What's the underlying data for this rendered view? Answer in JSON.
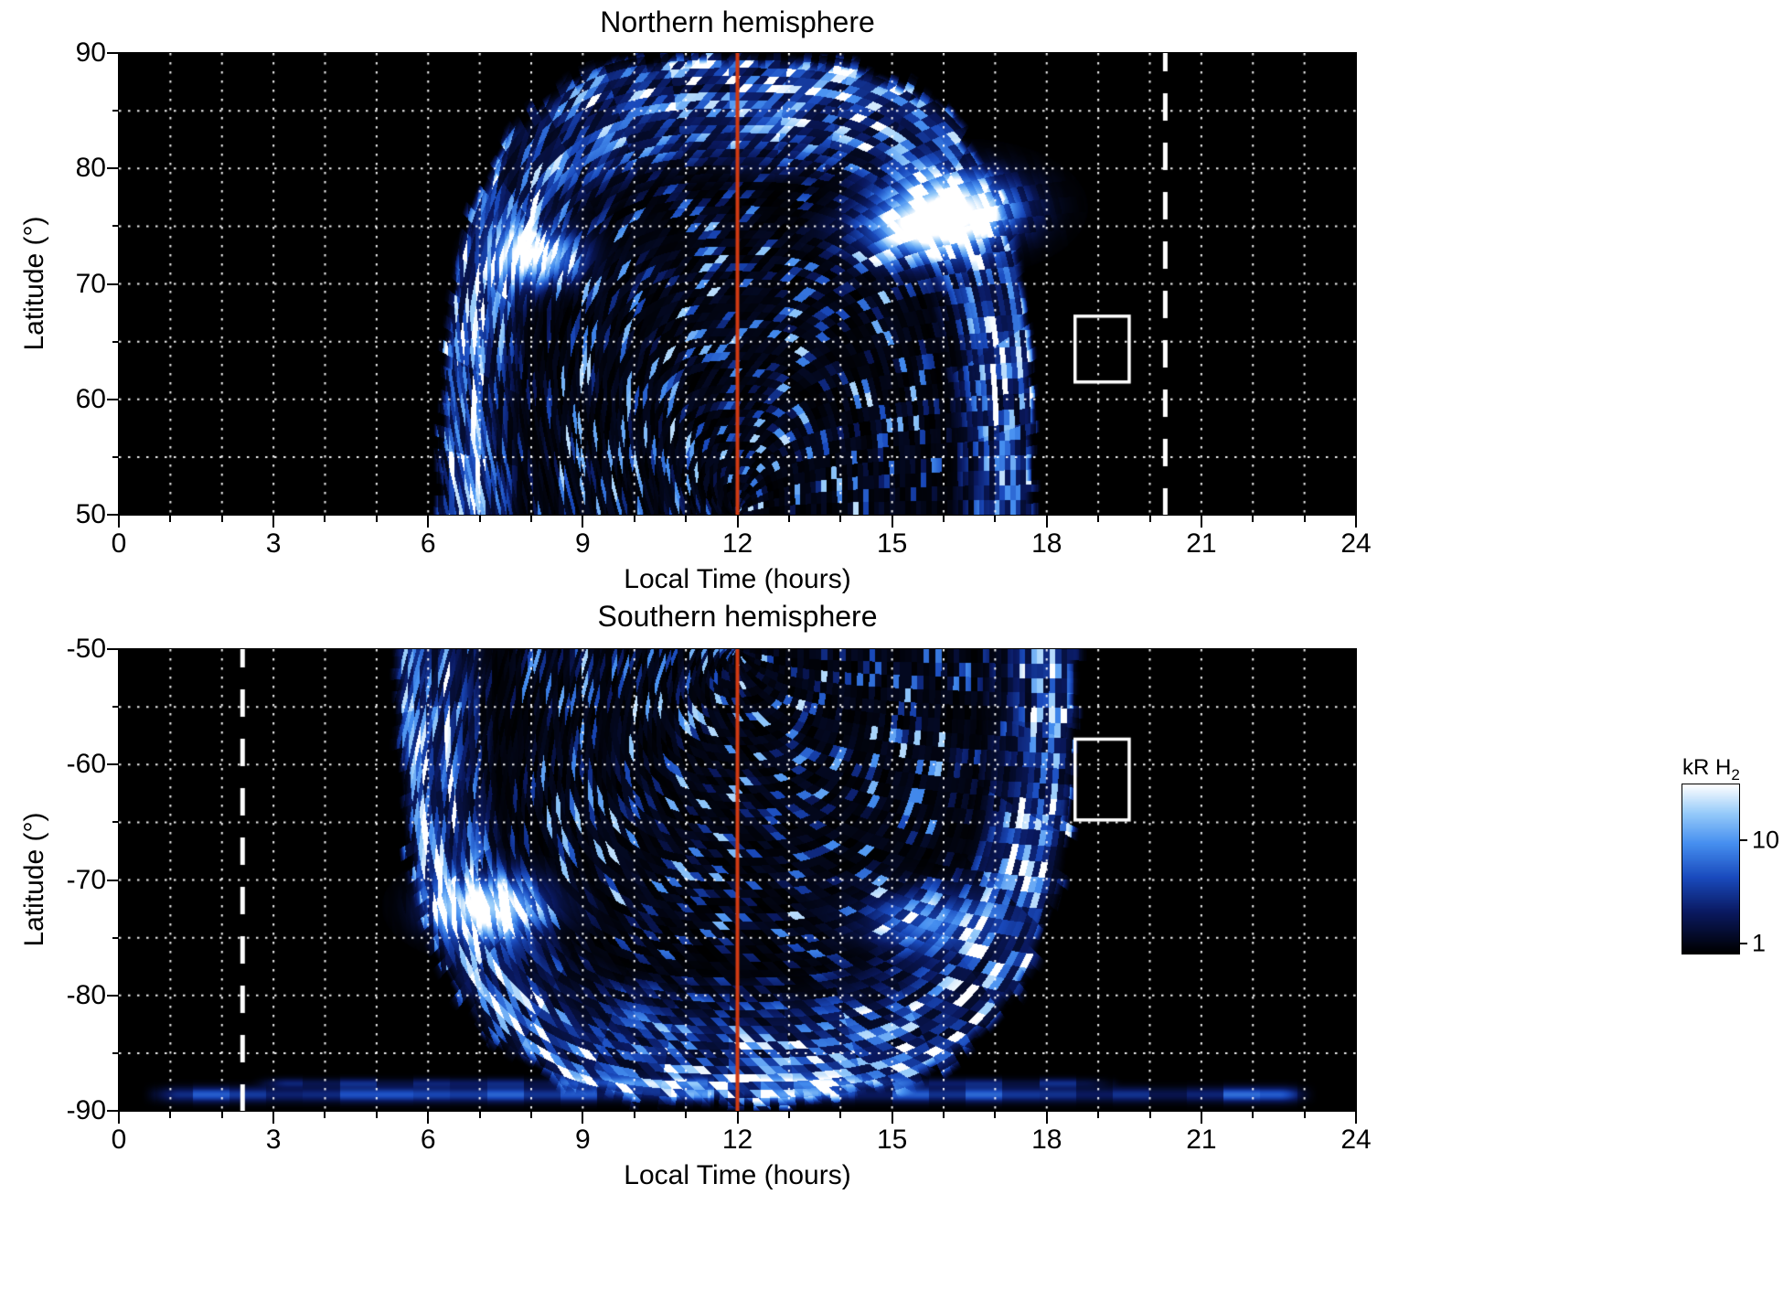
{
  "chart_data": [
    {
      "type": "heatmap",
      "hemisphere": "north",
      "title": "Northern hemisphere",
      "xlabel": "Local Time (hours)",
      "ylabel": "Latitude (°)",
      "xlim": [
        0,
        24
      ],
      "xticks": [
        0,
        3,
        6,
        9,
        12,
        15,
        18,
        21,
        24
      ],
      "x_minor_step": 1,
      "y_top": 90,
      "y_bottom": 50,
      "yticks": [
        90,
        80,
        70,
        60,
        50
      ],
      "y_minor_step": 5,
      "background_color": "#000000",
      "grid_color": "#ffffff",
      "grid_style": "dotted",
      "coverage": {
        "center_lt": 12,
        "base_lat": 50,
        "apex_lat": 88.7,
        "half_width_hours": 5.6
      },
      "bright_spots": [
        {
          "lt": 8.1,
          "lat": 72.4,
          "sx": 0.55,
          "sy": 1.6,
          "amp": 1.15
        },
        {
          "lt": 15.4,
          "lat": 74.8,
          "sx": 0.75,
          "sy": 1.9,
          "amp": 1.1
        },
        {
          "lt": 16.4,
          "lat": 76.6,
          "sx": 0.8,
          "sy": 2.0,
          "amp": 1.15
        }
      ],
      "noon_line": {
        "lt": 12,
        "color": "#d03a12",
        "style": "solid"
      },
      "dashed_line": {
        "lt": 20.3,
        "color": "#ffffff",
        "style": "dashed"
      },
      "roi_box": {
        "lt_min": 18.55,
        "lt_max": 19.6,
        "lat_min": 61.5,
        "lat_max": 67.2,
        "color": "#ffffff"
      },
      "seed": 11
    },
    {
      "type": "heatmap",
      "hemisphere": "south",
      "title": "Southern hemisphere",
      "xlabel": "Local Time (hours)",
      "ylabel": "Latitude (°)",
      "xlim": [
        0,
        24
      ],
      "xticks": [
        0,
        3,
        6,
        9,
        12,
        15,
        18,
        21,
        24
      ],
      "x_minor_step": 1,
      "y_top": -50,
      "y_bottom": -90,
      "yticks": [
        -50,
        -60,
        -70,
        -80,
        -90
      ],
      "y_minor_step": 5,
      "background_color": "#000000",
      "grid_color": "#ffffff",
      "grid_style": "dotted",
      "coverage": {
        "center_lt": 12,
        "base_lat": -50,
        "apex_lat": -88.2,
        "half_width_hours": 6.4
      },
      "bright_spots": [
        {
          "lt": 7.2,
          "lat": -72.3,
          "sx": 0.7,
          "sy": 1.7,
          "amp": 1.25
        },
        {
          "lt": 15.6,
          "lat": -73.5,
          "sx": 0.8,
          "sy": 1.8,
          "amp": 0.6
        }
      ],
      "polar_streaks": [
        {
          "lat": -88.6,
          "lt_min": 0.4,
          "lt_max": 23.3,
          "sigma": 0.45,
          "amp": 0.55
        },
        {
          "lat": -87.6,
          "lt_min": 2.5,
          "lt_max": 19.5,
          "sigma": 0.3,
          "amp": 0.35
        }
      ],
      "noon_line": {
        "lt": 12,
        "color": "#d03a12",
        "style": "solid"
      },
      "dashed_line": {
        "lt": 2.4,
        "color": "#ffffff",
        "style": "dashed"
      },
      "roi_box": {
        "lt_min": 18.55,
        "lt_max": 19.6,
        "lat_min": -64.8,
        "lat_max": -57.8,
        "color": "#ffffff"
      },
      "seed": 23
    },
    {
      "type": "colorbar",
      "label_main": "kR H",
      "label_sub": "2",
      "scale": "log",
      "vmin": 0.8,
      "vmax": 35,
      "ticks": [
        {
          "value": 10,
          "label": "10"
        },
        {
          "value": 1,
          "label": "1"
        }
      ],
      "gradient_stops": [
        "#000000",
        "#0a1960",
        "#1a4bbe",
        "#468ff0",
        "#96cbfa",
        "#ffffff"
      ]
    }
  ]
}
